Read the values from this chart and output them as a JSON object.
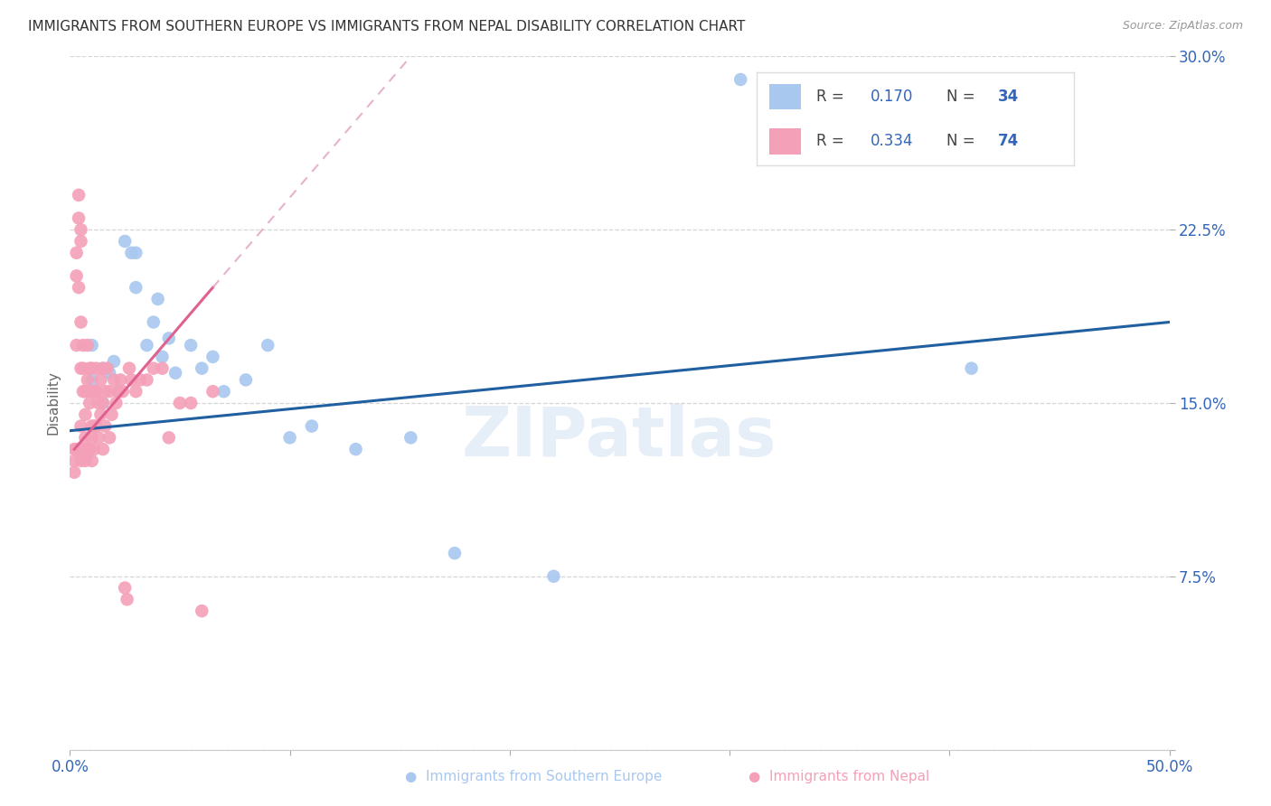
{
  "title": "IMMIGRANTS FROM SOUTHERN EUROPE VS IMMIGRANTS FROM NEPAL DISABILITY CORRELATION CHART",
  "source": "Source: ZipAtlas.com",
  "xlabel_blue": "Immigrants from Southern Europe",
  "xlabel_pink": "Immigrants from Nepal",
  "ylabel": "Disability",
  "xlim": [
    0.0,
    0.5
  ],
  "ylim": [
    0.0,
    0.3
  ],
  "xticks": [
    0.0,
    0.1,
    0.2,
    0.3,
    0.4,
    0.5
  ],
  "xticklabels": [
    "0.0%",
    "",
    "",
    "",
    "",
    "50.0%"
  ],
  "yticks": [
    0.0,
    0.075,
    0.15,
    0.225,
    0.3
  ],
  "yticklabels": [
    "",
    "7.5%",
    "15.0%",
    "22.5%",
    "30.0%"
  ],
  "R_blue": 0.17,
  "N_blue": 34,
  "R_pink": 0.334,
  "N_pink": 74,
  "color_blue": "#A8C8F0",
  "color_pink": "#F4A0B8",
  "line_blue": "#2060A0",
  "line_pink": "#E06090",
  "line_dashed_pink_color": "#E0A0C0",
  "watermark": "ZIPatlas",
  "blue_x": [
    0.005,
    0.008,
    0.01,
    0.01,
    0.012,
    0.015,
    0.015,
    0.018,
    0.02,
    0.022,
    0.025,
    0.028,
    0.03,
    0.03,
    0.035,
    0.038,
    0.04,
    0.042,
    0.045,
    0.048,
    0.055,
    0.06,
    0.065,
    0.07,
    0.08,
    0.09,
    0.1,
    0.11,
    0.13,
    0.155,
    0.175,
    0.22,
    0.305,
    0.41
  ],
  "blue_y": [
    0.13,
    0.128,
    0.175,
    0.16,
    0.155,
    0.165,
    0.15,
    0.163,
    0.168,
    0.155,
    0.22,
    0.215,
    0.215,
    0.2,
    0.175,
    0.185,
    0.195,
    0.17,
    0.178,
    0.163,
    0.175,
    0.165,
    0.17,
    0.155,
    0.16,
    0.175,
    0.135,
    0.14,
    0.13,
    0.135,
    0.085,
    0.075,
    0.29,
    0.165
  ],
  "pink_x": [
    0.002,
    0.002,
    0.002,
    0.003,
    0.003,
    0.003,
    0.003,
    0.004,
    0.004,
    0.004,
    0.004,
    0.005,
    0.005,
    0.005,
    0.005,
    0.005,
    0.005,
    0.006,
    0.006,
    0.006,
    0.006,
    0.007,
    0.007,
    0.007,
    0.007,
    0.008,
    0.008,
    0.008,
    0.009,
    0.009,
    0.009,
    0.01,
    0.01,
    0.01,
    0.01,
    0.01,
    0.011,
    0.011,
    0.011,
    0.012,
    0.012,
    0.012,
    0.013,
    0.013,
    0.014,
    0.014,
    0.015,
    0.015,
    0.015,
    0.016,
    0.016,
    0.017,
    0.018,
    0.018,
    0.019,
    0.02,
    0.021,
    0.022,
    0.023,
    0.024,
    0.025,
    0.026,
    0.027,
    0.028,
    0.03,
    0.032,
    0.035,
    0.038,
    0.042,
    0.045,
    0.05,
    0.055,
    0.06,
    0.065
  ],
  "pink_y": [
    0.13,
    0.125,
    0.12,
    0.215,
    0.205,
    0.175,
    0.13,
    0.24,
    0.23,
    0.2,
    0.13,
    0.225,
    0.22,
    0.185,
    0.165,
    0.14,
    0.125,
    0.175,
    0.165,
    0.155,
    0.13,
    0.155,
    0.145,
    0.135,
    0.125,
    0.175,
    0.16,
    0.13,
    0.165,
    0.15,
    0.13,
    0.165,
    0.155,
    0.14,
    0.135,
    0.125,
    0.155,
    0.14,
    0.13,
    0.165,
    0.155,
    0.14,
    0.15,
    0.135,
    0.16,
    0.145,
    0.165,
    0.15,
    0.13,
    0.155,
    0.14,
    0.165,
    0.155,
    0.135,
    0.145,
    0.16,
    0.15,
    0.155,
    0.16,
    0.155,
    0.07,
    0.065,
    0.165,
    0.16,
    0.155,
    0.16,
    0.16,
    0.165,
    0.165,
    0.135,
    0.15,
    0.15,
    0.06,
    0.155
  ]
}
